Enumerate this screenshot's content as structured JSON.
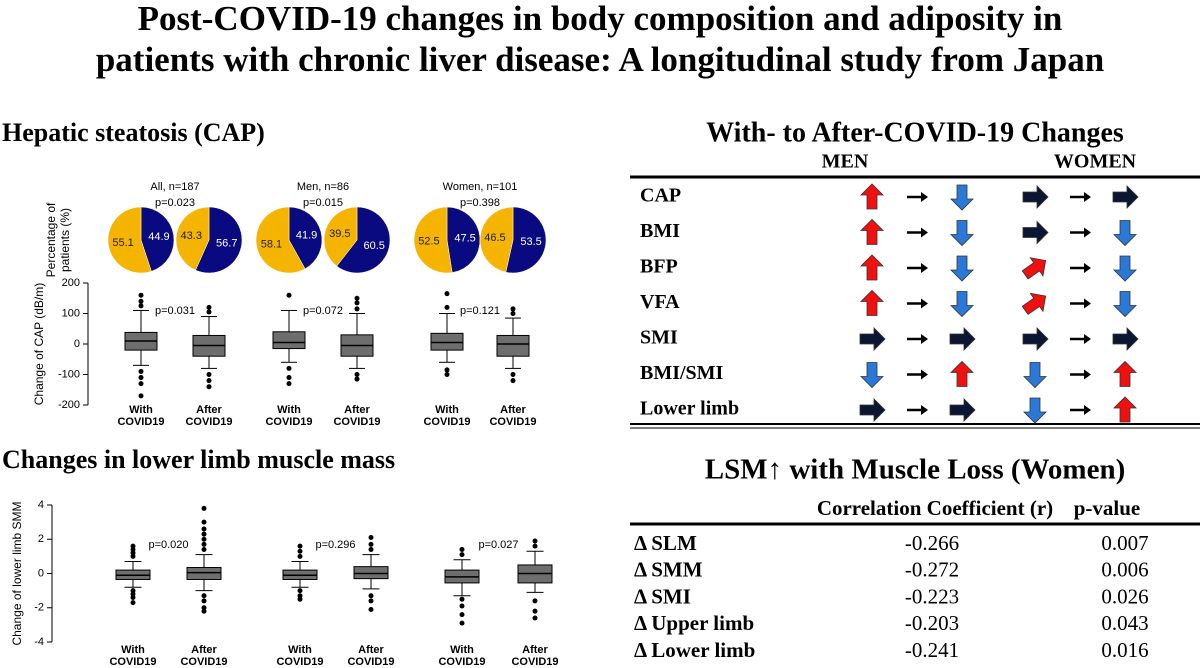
{
  "title": [
    "Post-COVID-19 changes in body composition and adiposity in",
    "patients with chronic liver disease: A longitudinal study from Japan"
  ],
  "chart_data": [
    {
      "type": "pie",
      "title": "Hepatic steatosis (CAP)",
      "ylabel": [
        "Percentage of",
        "patients (%)"
      ],
      "colors": [
        "#f5b400",
        "#0a0a80"
      ],
      "groups": [
        {
          "title": "All, n=187",
          "p": "p=0.023",
          "pies": [
            {
              "values": [
                55.1,
                44.9
              ]
            },
            {
              "values": [
                43.3,
                56.7
              ]
            }
          ]
        },
        {
          "title": "Men, n=86",
          "p": "p=0.015",
          "pies": [
            {
              "values": [
                58.1,
                41.9
              ]
            },
            {
              "values": [
                39.5,
                60.5
              ]
            }
          ]
        },
        {
          "title": "Women, n=101",
          "p": "p=0.398",
          "pies": [
            {
              "values": [
                52.5,
                47.5
              ]
            },
            {
              "values": [
                46.5,
                53.5
              ]
            }
          ]
        }
      ]
    },
    {
      "type": "box",
      "ylabel": "Change of CAP  (dB/m)",
      "ylim": [
        -200,
        200
      ],
      "yticks": [
        -200,
        -100,
        0,
        100,
        200
      ],
      "color": "#6e6e6e",
      "groups": [
        {
          "p": "p=0.031",
          "boxes": [
            {
              "name": [
                "With",
                "COVID19"
              ],
              "low": -70,
              "q1": -20,
              "median": 10,
              "q3": 38,
              "high": 110,
              "outliers": [
                125,
                140,
                160,
                -90,
                -110,
                -130,
                -170
              ]
            },
            {
              "name": [
                "After",
                "COVID19"
              ],
              "low": -80,
              "q1": -40,
              "median": -5,
              "q3": 28,
              "high": 90,
              "outliers": [
                105,
                120,
                -100,
                -120,
                -140
              ]
            }
          ]
        },
        {
          "p": "p=0.072",
          "boxes": [
            {
              "name": [
                "With",
                "COVID19"
              ],
              "low": -60,
              "q1": -15,
              "median": 5,
              "q3": 40,
              "high": 110,
              "outliers": [
                160,
                -80,
                -110,
                -130
              ]
            },
            {
              "name": [
                "After",
                "COVID19"
              ],
              "low": -80,
              "q1": -40,
              "median": -5,
              "q3": 30,
              "high": 100,
              "outliers": [
                115,
                135,
                150,
                -100,
                -115
              ]
            }
          ]
        },
        {
          "p": "p=0.121",
          "boxes": [
            {
              "name": [
                "With",
                "COVID19"
              ],
              "low": -60,
              "q1": -20,
              "median": 5,
              "q3": 35,
              "high": 100,
              "outliers": [
                120,
                165,
                -85,
                -100
              ]
            },
            {
              "name": [
                "After",
                "COVID19"
              ],
              "low": -80,
              "q1": -40,
              "median": 0,
              "q3": 28,
              "high": 85,
              "outliers": [
                100,
                115,
                -100,
                -120
              ]
            }
          ]
        }
      ]
    },
    {
      "type": "box",
      "title": "Changes in lower limb muscle mass",
      "ylabel": "Change of lower limb SMM",
      "ylim": [
        -4,
        4
      ],
      "yticks": [
        -4,
        -2,
        0,
        2,
        4
      ],
      "color": "#6e6e6e",
      "groups": [
        {
          "p": "p=0.020",
          "boxes": [
            {
              "name": [
                "With",
                "COVID19"
              ],
              "low": -0.8,
              "q1": -0.35,
              "median": -0.1,
              "q3": 0.2,
              "high": 0.7,
              "outliers": [
                1.0,
                1.2,
                1.4,
                1.6,
                -1.0,
                -1.2,
                -1.4,
                -1.7
              ]
            },
            {
              "name": [
                "After",
                "COVID19"
              ],
              "low": -1.0,
              "q1": -0.35,
              "median": 0.05,
              "q3": 0.35,
              "high": 1.1,
              "outliers": [
                1.4,
                1.7,
                2.0,
                2.3,
                2.6,
                3.0,
                3.8,
                -1.3,
                -1.6,
                -2.0,
                -2.2
              ]
            }
          ]
        },
        {
          "p": "p=0.296",
          "boxes": [
            {
              "name": [
                "With",
                "COVID19"
              ],
              "low": -0.8,
              "q1": -0.35,
              "median": -0.1,
              "q3": 0.2,
              "high": 0.7,
              "outliers": [
                1.0,
                1.3,
                1.6,
                -1.0,
                -1.3,
                -1.5
              ]
            },
            {
              "name": [
                "After",
                "COVID19"
              ],
              "low": -0.9,
              "q1": -0.3,
              "median": 0.0,
              "q3": 0.4,
              "high": 1.1,
              "outliers": [
                1.4,
                1.7,
                2.1,
                -1.3,
                -1.6,
                -2.1
              ]
            }
          ]
        },
        {
          "p": "p=0.027",
          "boxes": [
            {
              "name": [
                "With",
                "COVID19"
              ],
              "low": -1.3,
              "q1": -0.55,
              "median": -0.2,
              "q3": 0.2,
              "high": 0.8,
              "outliers": [
                1.1,
                1.4,
                -1.5,
                -1.9,
                -2.4,
                -2.9
              ]
            },
            {
              "name": [
                "After",
                "COVID19"
              ],
              "low": -1.1,
              "q1": -0.55,
              "median": 0.0,
              "q3": 0.5,
              "high": 1.3,
              "outliers": [
                1.6,
                1.9,
                -1.6,
                -2.2,
                -2.6
              ]
            }
          ]
        }
      ]
    }
  ],
  "changes_table": {
    "title": "With- to After-COVID-19 Changes",
    "columns": [
      "MEN",
      "WOMEN"
    ],
    "rows": [
      {
        "label": "CAP",
        "men": [
          "up",
          "down"
        ],
        "women": [
          "right",
          "right"
        ]
      },
      {
        "label": "BMI",
        "men": [
          "up",
          "down"
        ],
        "women": [
          "right",
          "down"
        ]
      },
      {
        "label": "BFP",
        "men": [
          "up",
          "down"
        ],
        "women": [
          "up-right",
          "down"
        ]
      },
      {
        "label": "VFA",
        "men": [
          "up",
          "down"
        ],
        "women": [
          "up-right",
          "down"
        ]
      },
      {
        "label": "SMI",
        "men": [
          "right",
          "right"
        ],
        "women": [
          "right",
          "right"
        ]
      },
      {
        "label": "BMI/SMI",
        "men": [
          "down",
          "up"
        ],
        "women": [
          "down",
          "up"
        ]
      },
      {
        "label": "Lower limb",
        "men": [
          "right",
          "right"
        ],
        "women": [
          "down",
          "up"
        ]
      }
    ]
  },
  "correlation_table": {
    "title": "LSM↑ with Muscle Loss (Women)",
    "header": [
      "Correlation Coefficient (r)",
      "p-value"
    ],
    "rows": [
      [
        "Δ SLM",
        "-0.266",
        "0.007"
      ],
      [
        "Δ SMM",
        "-0.272",
        "0.006"
      ],
      [
        "Δ SMI",
        "-0.223",
        "0.026"
      ],
      [
        "Δ Upper limb",
        "-0.203",
        "0.043"
      ],
      [
        "Δ Lower limb",
        "-0.241",
        "0.016"
      ]
    ]
  }
}
